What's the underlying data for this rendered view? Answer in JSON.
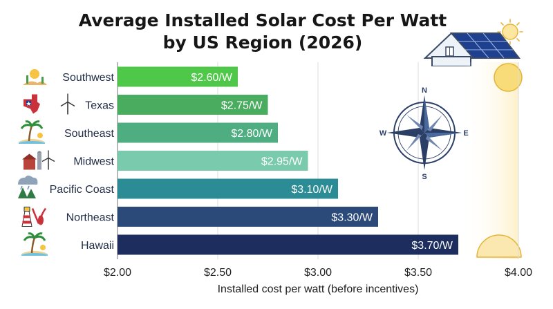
{
  "chart_data": {
    "type": "bar",
    "orientation": "horizontal",
    "title_line1": "Average Installed Solar Cost Per Watt",
    "title_line2": "by US Region (2026)",
    "xlabel": "Installed cost per watt (before incentives)",
    "ylabel": "",
    "categories": [
      "Southwest",
      "Texas",
      "Southeast",
      "Midwest",
      "Pacific Coast",
      "Northeast",
      "Hawaii"
    ],
    "values": [
      2.6,
      2.75,
      2.8,
      2.95,
      3.1,
      3.3,
      3.7
    ],
    "data_labels": [
      "$2.60/W",
      "$2.75/W",
      "$2.80/W",
      "$2.95/W",
      "$3.10/W",
      "$3.30/W",
      "$3.70/W"
    ],
    "xlim": [
      2.0,
      4.0
    ],
    "xticks": [
      2.0,
      2.5,
      3.0,
      3.5,
      4.0
    ],
    "xtick_labels": [
      "$2.00",
      "$2.50",
      "$3.00",
      "$3.50",
      "$4.00"
    ],
    "grid": "vertical",
    "bar_colors": [
      "#4fc84a",
      "#4aac5f",
      "#4fad82",
      "#7acaae",
      "#2c8c95",
      "#2b4a7a",
      "#1c2d5e"
    ],
    "category_icons": [
      "desert-cactus-sun-icon",
      "texas-flag-wind-turbine-icon",
      "palm-tree-beach-icon",
      "barn-silo-wind-turbine-icon",
      "rain-cloud-trees-icon",
      "lighthouse-lobster-icon",
      "palm-tree-island-icon"
    ]
  },
  "compass": {
    "n": "N",
    "e": "E",
    "s": "S",
    "w": "W"
  }
}
